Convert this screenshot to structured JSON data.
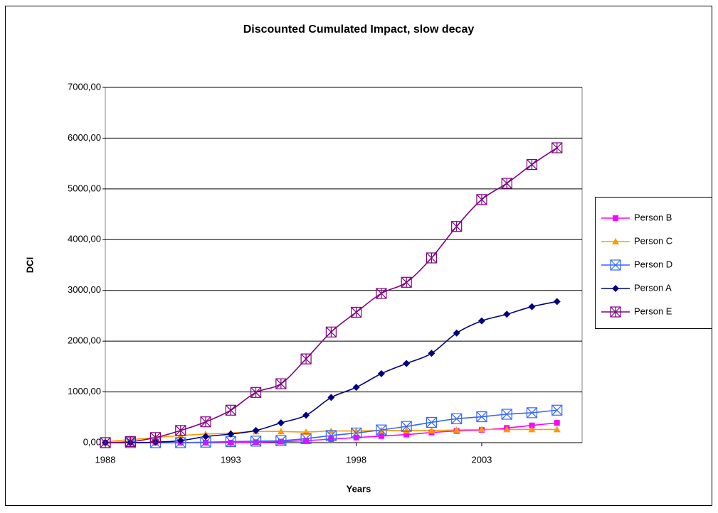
{
  "chart_data": {
    "type": "line",
    "title": "Discounted Cumulated Impact, slow decay",
    "x_label": "Years",
    "y_label": "DCI",
    "x": [
      1988,
      1989,
      1990,
      1991,
      1992,
      1993,
      1994,
      1995,
      1996,
      1997,
      1998,
      1999,
      2000,
      2001,
      2002,
      2003,
      2004,
      2005,
      2006
    ],
    "xlim": [
      1988,
      2007
    ],
    "xticks": [
      1988,
      1993,
      1998,
      2003
    ],
    "ylim": [
      0,
      7000
    ],
    "yticks": [
      {
        "value": 0,
        "label": "0,00"
      },
      {
        "value": 1000,
        "label": "1000,00"
      },
      {
        "value": 2000,
        "label": "2000,00"
      },
      {
        "value": 3000,
        "label": "3000,00"
      },
      {
        "value": 4000,
        "label": "4000,00"
      },
      {
        "value": 5000,
        "label": "5000,00"
      },
      {
        "value": 6000,
        "label": "6000,00"
      },
      {
        "value": 7000,
        "label": "7000,00"
      }
    ],
    "grid": true,
    "legend": "right",
    "smooth": true,
    "series": [
      {
        "name": "Person B",
        "color": "#ff00ff",
        "marker": "square",
        "values": [
          0,
          0,
          0,
          0,
          0,
          0,
          10,
          20,
          40,
          70,
          100,
          130,
          160,
          200,
          230,
          250,
          290,
          340,
          390
        ]
      },
      {
        "name": "Person C",
        "color": "#ff9900",
        "marker": "triangle",
        "values": [
          20,
          60,
          100,
          140,
          170,
          190,
          220,
          220,
          210,
          230,
          230,
          240,
          240,
          240,
          250,
          260,
          260,
          260,
          260
        ]
      },
      {
        "name": "Person D",
        "color": "#3366ff",
        "marker": "box-x",
        "values": [
          0,
          0,
          0,
          0,
          10,
          20,
          30,
          40,
          80,
          140,
          190,
          250,
          320,
          400,
          470,
          510,
          560,
          590,
          640
        ]
      },
      {
        "name": "Person A",
        "color": "#000080",
        "marker": "diamond",
        "values": [
          0,
          0,
          10,
          40,
          120,
          170,
          240,
          390,
          540,
          890,
          1090,
          1360,
          1560,
          1760,
          2160,
          2400,
          2530,
          2680,
          2780
        ]
      },
      {
        "name": "Person E",
        "color": "#800080",
        "marker": "box-star",
        "values": [
          0,
          20,
          100,
          240,
          410,
          640,
          990,
          1160,
          1650,
          2180,
          2570,
          2940,
          3160,
          3640,
          4260,
          4790,
          5110,
          5480,
          5810
        ]
      }
    ]
  }
}
